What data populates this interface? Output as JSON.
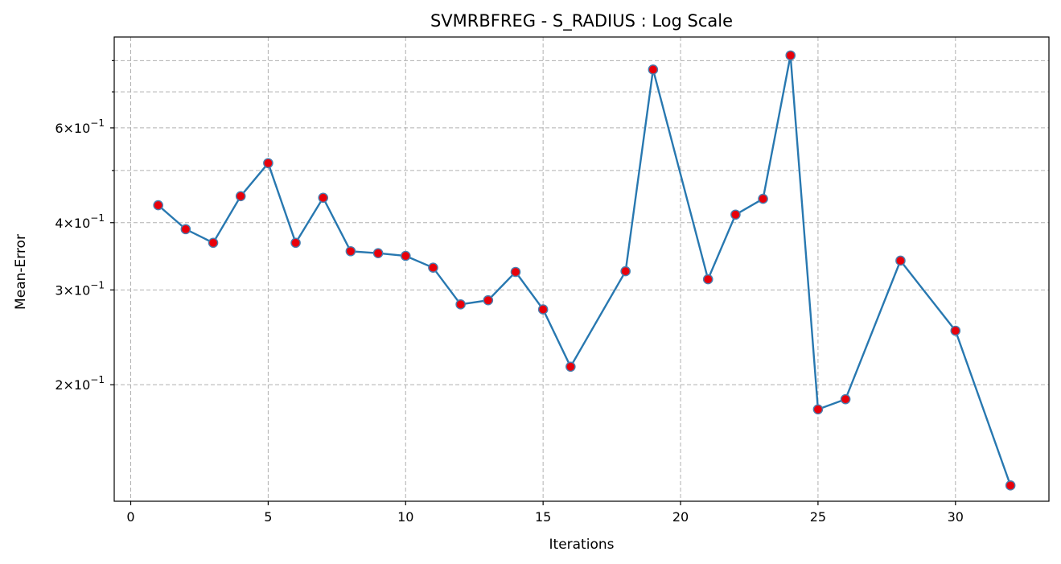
{
  "chart_data": {
    "type": "line",
    "title": "SVMRBFREG - S_RADIUS : Log Scale",
    "xlabel": "Iterations",
    "ylabel": "Mean-Error",
    "yscale": "log",
    "xlim": [
      -0.6,
      33.4
    ],
    "ylim": [
      0.1215,
      0.885
    ],
    "grid": true,
    "x_ticks": [
      0,
      5,
      10,
      15,
      20,
      25,
      30
    ],
    "y_major_ticks": [
      {
        "value": 0.2,
        "mantissa": "2",
        "base": "10",
        "exp": "−1"
      },
      {
        "value": 0.3,
        "mantissa": "3",
        "base": "10",
        "exp": "−1"
      },
      {
        "value": 0.4,
        "mantissa": "4",
        "base": "10",
        "exp": "−1"
      },
      {
        "value": 0.6,
        "mantissa": "6",
        "base": "10",
        "exp": "−1"
      }
    ],
    "y_minor_ticks": [
      0.5,
      0.7,
      0.8
    ],
    "colors": {
      "line": "#2878b0",
      "marker_fill": "#e8000b",
      "marker_edge": "#4a7fb0"
    },
    "series": [
      {
        "x": [
          1,
          2,
          3,
          4,
          5,
          6,
          7,
          8,
          9,
          10,
          11,
          12,
          13,
          14,
          15,
          16,
          18,
          19,
          21,
          22,
          23,
          24,
          25,
          26,
          28,
          30,
          32
        ],
        "y": [
          0.431,
          0.389,
          0.367,
          0.448,
          0.516,
          0.367,
          0.445,
          0.354,
          0.351,
          0.347,
          0.33,
          0.282,
          0.287,
          0.324,
          0.276,
          0.216,
          0.325,
          0.77,
          0.314,
          0.414,
          0.443,
          0.818,
          0.18,
          0.188,
          0.34,
          0.252,
          0.13
        ]
      }
    ]
  }
}
